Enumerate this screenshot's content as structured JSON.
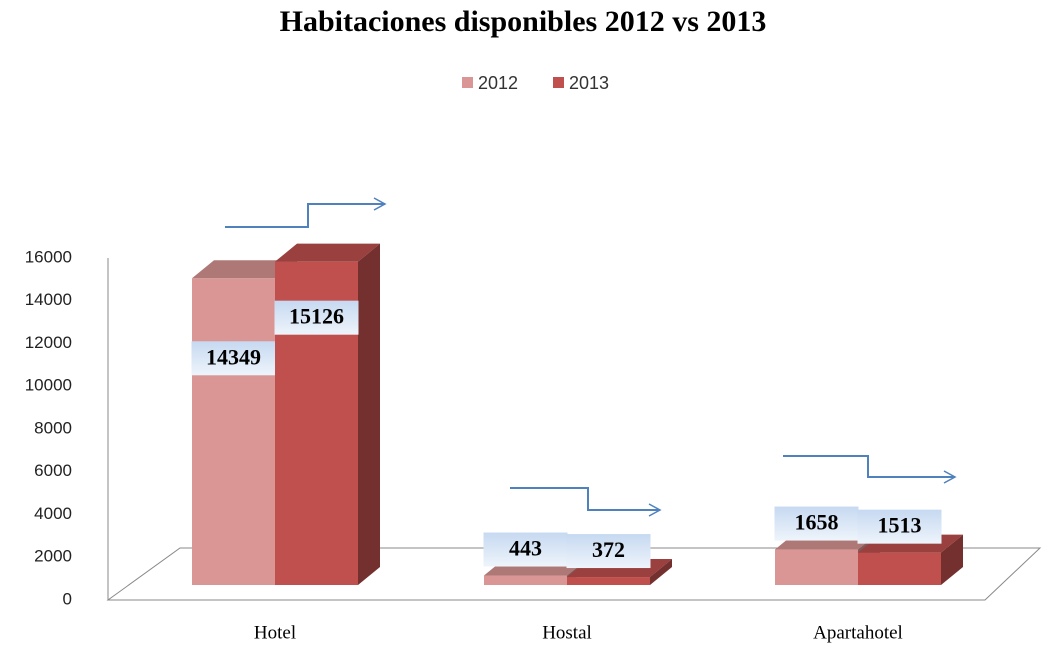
{
  "chart_data": {
    "type": "bar3d",
    "title": "Habitaciones disponibles 2012 vs 2013",
    "categories": [
      "Hotel",
      "Hostal",
      "Apartahotel"
    ],
    "series": [
      {
        "name": "2012",
        "color": "#d99694",
        "values": [
          14349,
          443,
          1658
        ]
      },
      {
        "name": "2013",
        "color": "#c0504d",
        "values": [
          15126,
          372,
          1513
        ]
      }
    ],
    "ylim": [
      0,
      16000
    ],
    "yticks": [
      0,
      2000,
      4000,
      6000,
      8000,
      10000,
      12000,
      14000,
      16000
    ],
    "legend": "top",
    "grid": false
  }
}
